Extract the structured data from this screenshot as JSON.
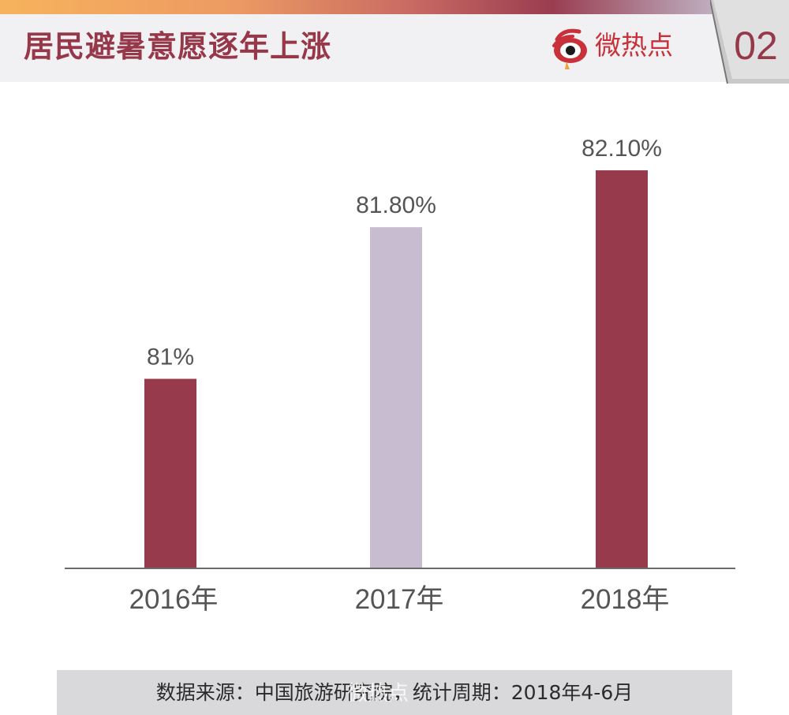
{
  "header": {
    "title": "居民避暑意愿逐年上涨",
    "brand_name": "微热点",
    "page_number": "02"
  },
  "colors": {
    "accent": "#96384a",
    "bar_default": "#963a4c",
    "bar_highlight": "#c8bcd0",
    "source_bg": "#d9d8da"
  },
  "chart_data": {
    "type": "bar",
    "categories": [
      "2016年",
      "2017年",
      "2018年"
    ],
    "values": [
      81.0,
      81.8,
      82.1
    ],
    "labels": [
      "81%",
      "81.80%",
      "82.10%"
    ],
    "highlight_index": 1,
    "title": "",
    "xlabel": "",
    "ylabel": "",
    "unit": "%",
    "ylim": [
      80,
      82.2
    ],
    "grid": false,
    "legend": "none"
  },
  "footer": {
    "source": "数据来源：中国旅游研究院，统计周期：2018年4-6月",
    "watermark": "微热点"
  }
}
